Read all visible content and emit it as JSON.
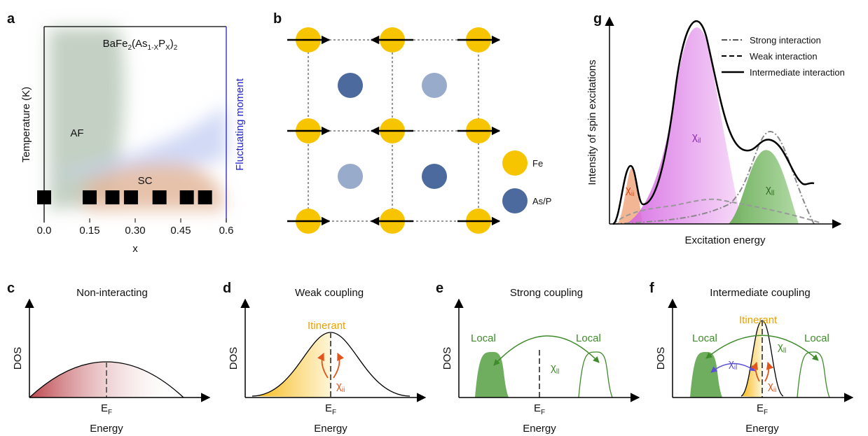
{
  "panels": {
    "a": {
      "label": "a",
      "title": [
        "BaFe",
        "2",
        "(As",
        "1-X",
        "P",
        "X",
        ")",
        "2"
      ],
      "y_label": "Temperature (K)",
      "y2_label": "Fluctuating moment",
      "x_label": "x",
      "xlim": [
        0,
        0.6
      ],
      "xticks": [
        {
          "value": 0,
          "label": "0.0"
        },
        0.15,
        {
          "value": 0.3,
          "label": "0.30"
        },
        0.45,
        0.6
      ],
      "regions": [
        "AF",
        "SC"
      ],
      "samples": [
        0,
        0.15,
        0.225,
        0.286,
        0.38,
        0.47,
        0.53
      ]
    },
    "b": {
      "label": "b",
      "legend": [
        "Fe",
        "As/P"
      ]
    },
    "c": {
      "label": "c",
      "title": "Non-interacting",
      "y_label": "DOS",
      "x_label": "Energy",
      "fermi": [
        "E",
        "F"
      ]
    },
    "d": {
      "label": "d",
      "title": "Weak coupling",
      "y_label": "DOS",
      "x_label": "Energy",
      "fermi": [
        "E",
        "F"
      ],
      "itinerant": "Itinerant",
      "chi_ii": [
        "χ",
        "ii"
      ]
    },
    "e": {
      "label": "e",
      "title": "Strong coupling",
      "y_label": "DOS",
      "x_label": "Energy",
      "fermi": [
        "E",
        "F"
      ],
      "local": [
        "Local",
        "Local"
      ],
      "chi_ll": [
        "χ",
        "ll"
      ]
    },
    "f": {
      "label": "f",
      "title": "Intermediate coupling",
      "y_label": "DOS",
      "x_label": "Energy",
      "fermi": [
        "E",
        "F"
      ],
      "itinerant": "Itinerant",
      "local": [
        "Local",
        "Local"
      ],
      "chi_il": [
        "χ",
        "il"
      ],
      "chi_ll": [
        "χ",
        "ll"
      ],
      "chi_ii": [
        "χ",
        "ii"
      ]
    },
    "g": {
      "label": "g",
      "y_label": "Intensity of spin excitations",
      "x_label": "Excitation energy",
      "legend": [
        "Strong interaction",
        "Weak interaction",
        "Intermediate interaction"
      ],
      "chi_il": [
        "χ",
        "il"
      ],
      "chi_ii": [
        "χ",
        "ii"
      ],
      "chi_ll": [
        "χ",
        "ll"
      ]
    }
  }
}
